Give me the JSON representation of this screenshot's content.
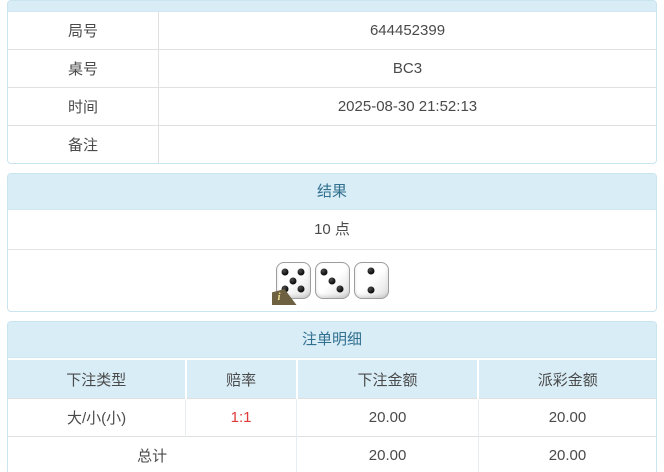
{
  "info_table": {
    "rows": [
      {
        "label": "局号",
        "value": "644452399"
      },
      {
        "label": "桌号",
        "value": "BC3"
      },
      {
        "label": "时间",
        "value": "2025-08-30 21:52:13"
      },
      {
        "label": "备注",
        "value": ""
      }
    ]
  },
  "result_panel": {
    "title": "结果",
    "points": "10 点",
    "dice": [
      5,
      3,
      2
    ],
    "info_badge_label": "i"
  },
  "bets_panel": {
    "title": "注单明细",
    "columns": [
      "下注类型",
      "赔率",
      "下注金额",
      "派彩金额"
    ],
    "rows": [
      {
        "bet_type": "大/小(小)",
        "odds": "1:1",
        "bet_amount": "20.00",
        "payout_amount": "20.00"
      }
    ],
    "total_row": {
      "label": "总计",
      "bet_amount": "20.00",
      "payout_amount": "20.00"
    }
  },
  "colors": {
    "heading_bg": "#d9edf7",
    "heading_text": "#31708f",
    "panel_border": "#c9e5f0",
    "row_border": "#e0e0e0",
    "odds_red": "#e03a38"
  }
}
